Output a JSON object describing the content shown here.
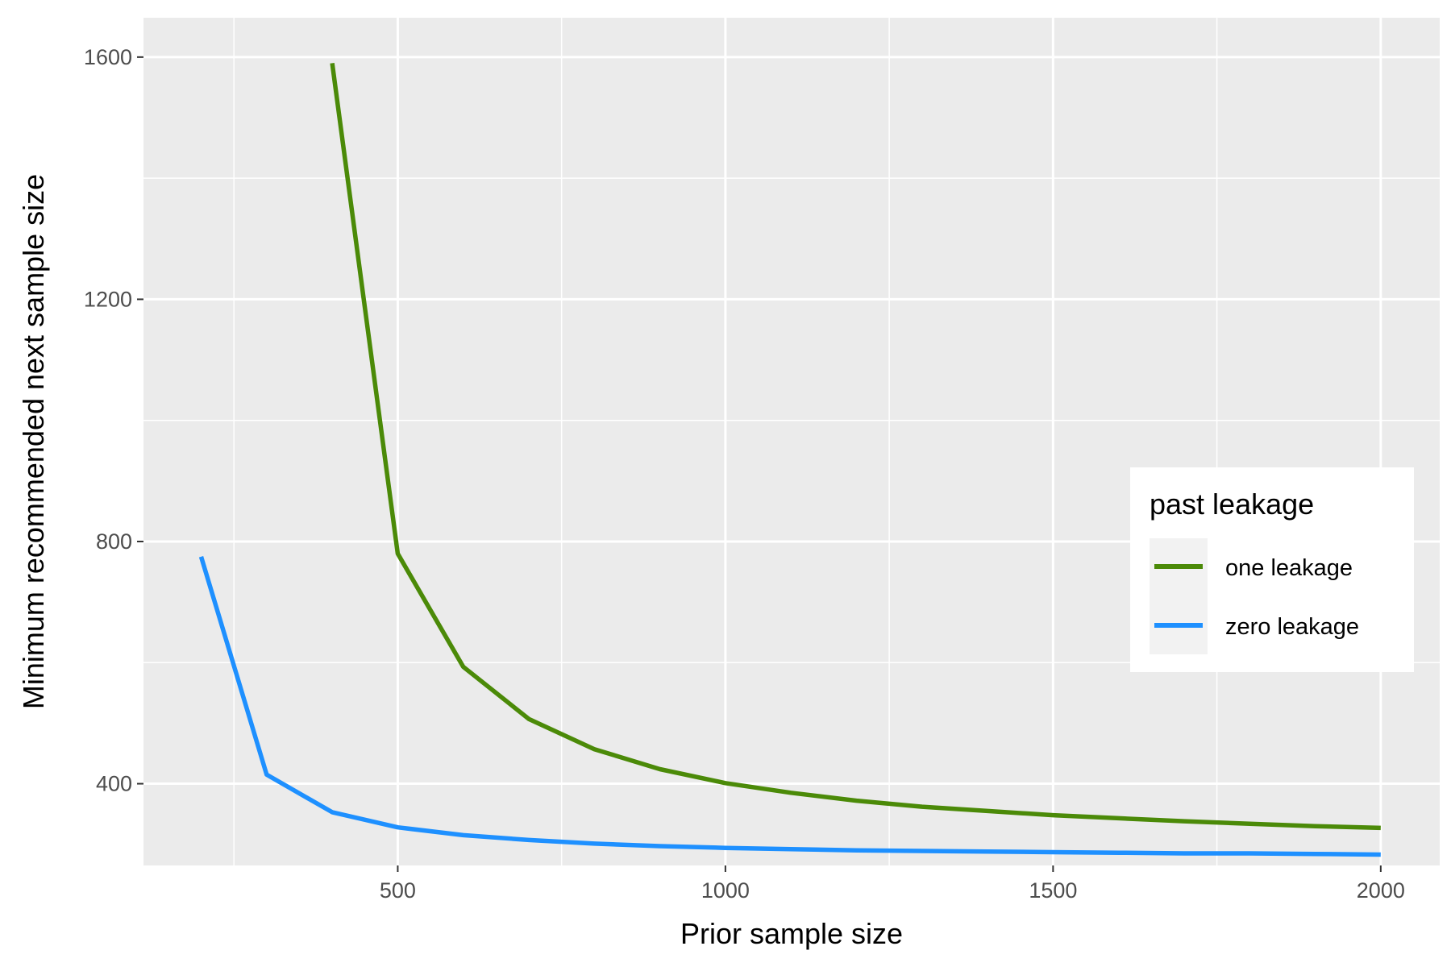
{
  "chart_data": {
    "type": "line",
    "xlabel": "Prior sample size",
    "ylabel": "Minimum recommended next sample size",
    "xlim": [
      112,
      2090
    ],
    "ylim": [
      265,
      1665
    ],
    "x_ticks": [
      500,
      1000,
      1500,
      2000
    ],
    "y_ticks": [
      400,
      800,
      1200,
      1600
    ],
    "x_ticks_labels": [
      "500",
      "1000",
      "1500",
      "2000"
    ],
    "y_ticks_labels": [
      "400",
      "800",
      "1200",
      "1600"
    ],
    "grid": true,
    "legend": {
      "title": "past leakage",
      "placement": "right"
    },
    "series": [
      {
        "name": "one leakage",
        "color": "#4b8a08",
        "x": [
          400,
          500,
          600,
          700,
          800,
          900,
          1000,
          1100,
          1200,
          1300,
          1400,
          1500,
          1600,
          1700,
          1800,
          1900,
          2000
        ],
        "y": [
          1590,
          780,
          593,
          507,
          457,
          424,
          401,
          385,
          372,
          362,
          355,
          348,
          343,
          338,
          334,
          330,
          327
        ]
      },
      {
        "name": "zero leakage",
        "color": "#1e90ff",
        "x": [
          200,
          300,
          400,
          500,
          600,
          700,
          800,
          900,
          1000,
          1100,
          1200,
          1300,
          1400,
          1500,
          1600,
          1700,
          1800,
          1900,
          2000
        ],
        "y": [
          775,
          415,
          353,
          328,
          315,
          307,
          301,
          297,
          294,
          292,
          290,
          289,
          288,
          287,
          286,
          285,
          285,
          284,
          283
        ]
      }
    ]
  }
}
